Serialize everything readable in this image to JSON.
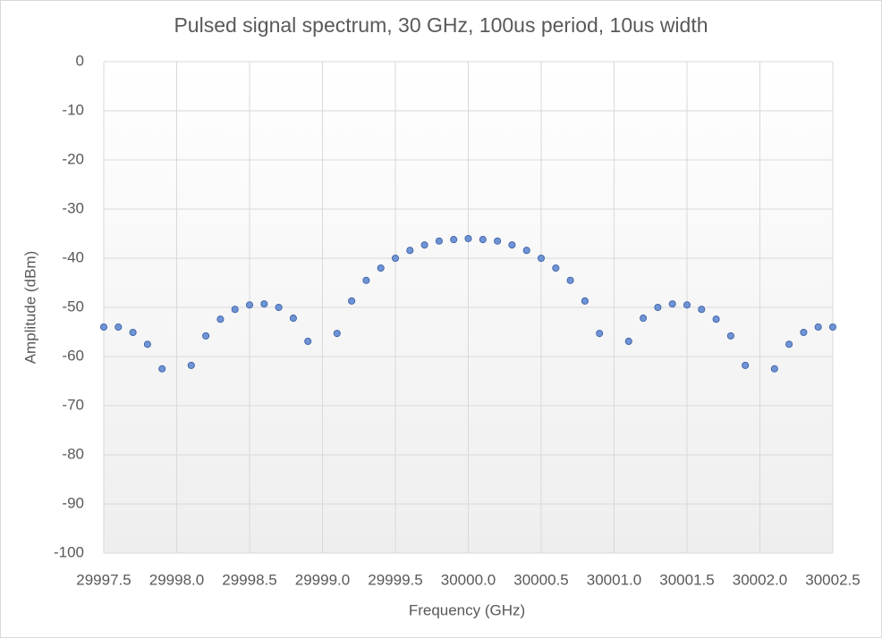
{
  "chart_data": {
    "type": "scatter",
    "title": "Pulsed signal spectrum, 30 GHz, 100us period, 10us width",
    "x_label": "Frequency (GHz)",
    "y_label": "Amplitude (dBm)",
    "series": [
      {
        "name": "Amplitude",
        "color": "#6f93d4",
        "x": [
          29997.5,
          29997.6,
          29997.7,
          29997.8,
          29997.9,
          29998.1,
          29998.2,
          29998.3,
          29998.4,
          29998.5,
          29998.6,
          29998.7,
          29998.8,
          29998.9,
          29999.1,
          29999.2,
          29999.3,
          29999.4,
          29999.5,
          29999.6,
          29999.7,
          29999.8,
          29999.9,
          30000.0,
          30000.1,
          30000.2,
          30000.3,
          30000.4,
          30000.5,
          30000.6,
          30000.7,
          30000.8,
          30000.9,
          30001.1,
          30001.2,
          30001.3,
          30001.4,
          30001.5,
          30001.6,
          30001.7,
          30001.8,
          30001.9,
          30002.1,
          30002.2,
          30002.3,
          30002.4,
          30002.5
        ],
        "values": [
          -54.0,
          -54.0,
          -55.1,
          -57.5,
          -62.5,
          -61.8,
          -55.8,
          -52.4,
          -50.4,
          -49.5,
          -49.3,
          -50.0,
          -52.2,
          -56.9,
          -55.3,
          -48.7,
          -44.5,
          -42.0,
          -40.0,
          -38.4,
          -37.3,
          -36.5,
          -36.2,
          -36.0,
          -36.2,
          -36.5,
          -37.3,
          -38.4,
          -40.0,
          -42.0,
          -44.5,
          -48.7,
          -55.3,
          -56.9,
          -52.2,
          -50.0,
          -49.3,
          -49.5,
          -50.4,
          -52.4,
          -55.8,
          -61.8,
          -62.5,
          -57.5,
          -55.1,
          -54.0,
          -54.0
        ]
      }
    ],
    "xlim": [
      29997.5,
      30002.5
    ],
    "xticks": [
      29997.5,
      {
        "value": 29998,
        "label": "29998.0"
      },
      29998.5,
      {
        "value": 29999,
        "label": "29999.0"
      },
      29999.5,
      {
        "value": 30000,
        "label": "30000.0"
      },
      30000.5,
      {
        "value": 30001,
        "label": "30001.0"
      },
      30001.5,
      {
        "value": 30002,
        "label": "30002.0"
      },
      30002.5
    ],
    "ylim": [
      -100,
      0
    ],
    "yticks": [
      -100,
      -90,
      -80,
      -70,
      -60,
      -50,
      -40,
      -30,
      -20,
      -10,
      0
    ],
    "grid": true
  }
}
